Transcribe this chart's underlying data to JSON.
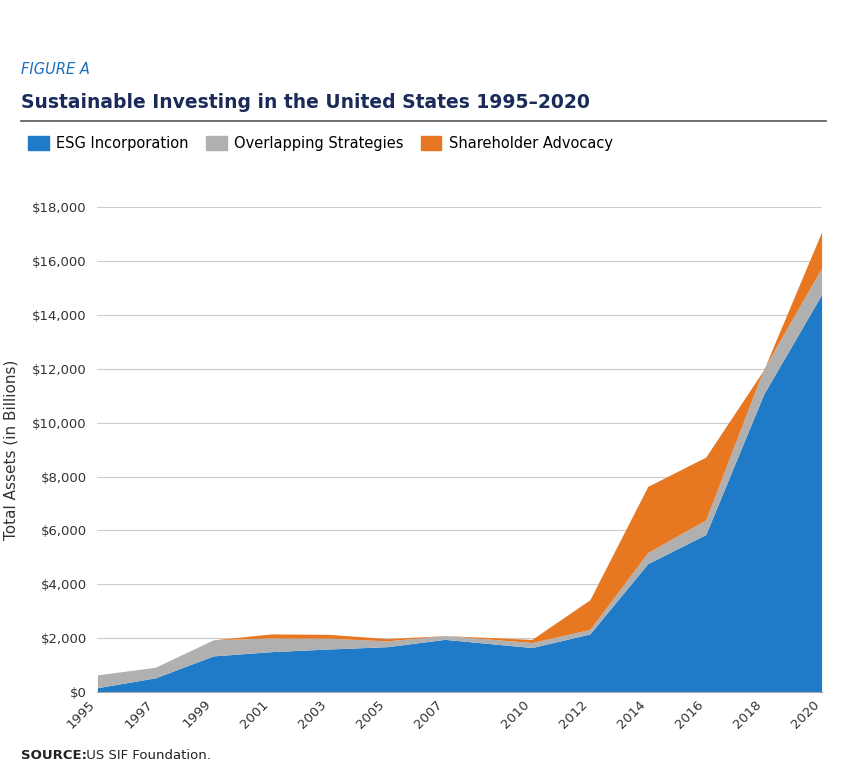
{
  "title_label": "FIGURE A",
  "title": "Sustainable Investing in the United States 1995–2020",
  "ylabel": "Total Assets (in Billions)",
  "source_bold": "SOURCE:",
  "source_rest": " US SIF Foundation.",
  "years": [
    1995,
    1997,
    1999,
    2001,
    2003,
    2005,
    2007,
    2010,
    2012,
    2014,
    2016,
    2018,
    2020
  ],
  "esg": [
    162,
    529,
    1343,
    1500,
    1600,
    1685,
    1956,
    1653,
    2158,
    4769,
    5849,
    11059,
    14763
  ],
  "overlapping": [
    639,
    922,
    1940,
    2010,
    2000,
    1900,
    2098,
    1840,
    2325,
    5183,
    6390,
    11998,
    15744
  ],
  "shareholder": [
    639,
    922,
    1940,
    2159,
    2143,
    1985,
    2098,
    1956,
    3427,
    7637,
    8723,
    11966,
    17085
  ],
  "esg_color": "#1f7bc8",
  "overlap_color": "#b0b0b0",
  "shareholder_color": "#e87722",
  "background_color": "#ffffff",
  "grid_color": "#cccccc",
  "title_label_color": "#1a6fbd",
  "title_color": "#1a2b5a",
  "ylim": [
    0,
    18000
  ],
  "yticks": [
    0,
    2000,
    4000,
    6000,
    8000,
    10000,
    12000,
    14000,
    16000,
    18000
  ],
  "legend_labels": [
    "ESG Incorporation",
    "Overlapping Strategies",
    "Shareholder Advocacy"
  ],
  "top_stripe_color": "#1f7bc8",
  "stripe_pattern_color": "#ffffff"
}
